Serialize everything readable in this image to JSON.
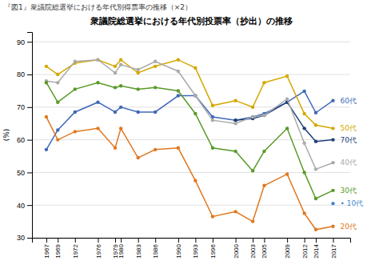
{
  "chart_data": {
    "type": "line",
    "title": "衆議院総選挙における年代別投票率（抄出）の推移",
    "subtitle": "『図1』衆議院総選挙における年代別得票率の推移（×2）",
    "y_label": "(%)",
    "x": [
      1967,
      1969,
      1972,
      1976,
      1979,
      1980,
      1983,
      1986,
      1990,
      1993,
      1996,
      2000,
      2003,
      2005,
      2009,
      2012,
      2014,
      2017
    ],
    "xlim": [
      1964.5,
      2020
    ],
    "xticks": [
      1967,
      1969,
      1972,
      1976,
      1979,
      1980,
      1983,
      1986,
      1990,
      1993,
      1996,
      2000,
      2003,
      2005,
      2009,
      2012,
      2014,
      2017
    ],
    "ylim": [
      30,
      93
    ],
    "yticks": [
      30,
      40,
      50,
      60,
      70,
      80,
      90
    ],
    "grid": true,
    "marker": "circle",
    "series": [
      {
        "name": "60代",
        "color": "#4169B8",
        "values": [
          57.0,
          63.0,
          68.5,
          71.5,
          68.5,
          70.0,
          68.5,
          68.5,
          73.5,
          73.5,
          67.0,
          66.0,
          67.0,
          68.0,
          71.5,
          74.9,
          68.3,
          72.0
        ]
      },
      {
        "name": "50代",
        "color": "#D4A800",
        "values": [
          82.5,
          80.0,
          83.5,
          84.5,
          82.5,
          84.5,
          80.5,
          82.5,
          84.5,
          82.0,
          70.5,
          72.0,
          70.0,
          77.5,
          79.5,
          68.0,
          64.5,
          63.5
        ]
      },
      {
        "name": "70代",
        "color": "#1e3f7a",
        "values": [
          null,
          null,
          null,
          null,
          null,
          null,
          null,
          null,
          null,
          null,
          null,
          66.0,
          66.5,
          67.5,
          71.5,
          63.5,
          59.5,
          60.0
        ]
      },
      {
        "name": "40代",
        "color": "#aaaaaa",
        "values": [
          78.0,
          77.5,
          84.0,
          84.5,
          80.5,
          83.0,
          81.5,
          84.0,
          81.0,
          73.5,
          66.0,
          65.0,
          67.0,
          67.5,
          72.5,
          59.0,
          51.0,
          53.0
        ]
      },
      {
        "name": "30代",
        "color": "#5a9a28",
        "values": [
          77.5,
          71.5,
          75.5,
          77.5,
          76.0,
          76.5,
          75.5,
          76.0,
          75.0,
          68.0,
          57.5,
          56.5,
          50.5,
          56.5,
          63.5,
          50.0,
          42.0,
          44.5
        ]
      },
      {
        "name": "10代",
        "color": "#4488cc",
        "values": [
          null,
          null,
          null,
          null,
          null,
          null,
          null,
          null,
          null,
          null,
          null,
          null,
          null,
          null,
          null,
          null,
          null,
          40.5
        ]
      },
      {
        "name": "20代",
        "color": "#E07820",
        "values": [
          67.0,
          60.0,
          62.5,
          63.5,
          57.5,
          63.5,
          54.5,
          57.0,
          57.5,
          47.5,
          36.5,
          38.0,
          35.0,
          46.0,
          49.5,
          37.5,
          32.5,
          33.5
        ]
      }
    ],
    "annotations": [
      {
        "text": "60代",
        "x": 2017,
        "y": 72.0
      },
      {
        "text": "50代",
        "x": 2017,
        "y": 63.5
      },
      {
        "text": "70代",
        "x": 2017,
        "y": 60.0
      },
      {
        "text": "40代",
        "x": 2017,
        "y": 53.0
      },
      {
        "text": "30代",
        "x": 2017,
        "y": 44.5
      },
      {
        "text": "• 10代",
        "x": 2017,
        "y": 40.5
      },
      {
        "text": "20代",
        "x": 2017,
        "y": 33.5
      }
    ]
  }
}
